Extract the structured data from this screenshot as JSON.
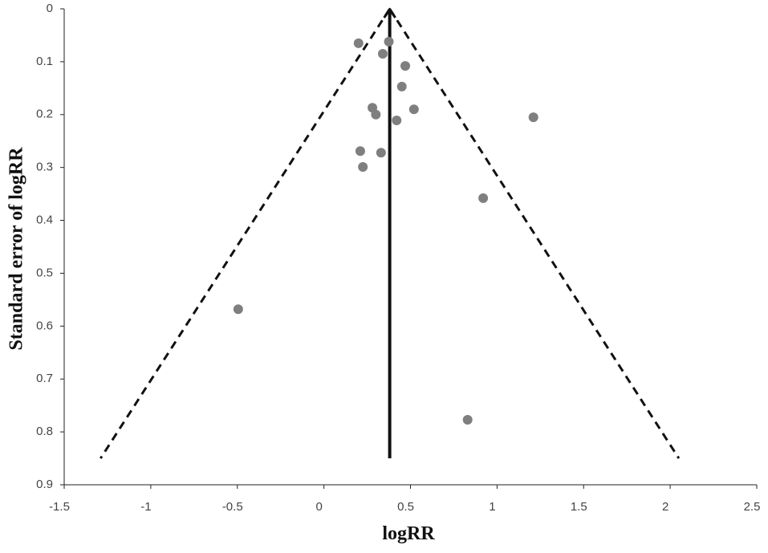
{
  "chart_data": {
    "type": "scatter",
    "x_label": "logRR",
    "y_label": "Standard error of logRR",
    "x": [
      0.2,
      0.375,
      0.34,
      0.47,
      0.45,
      0.28,
      0.52,
      0.3,
      0.42,
      1.21,
      0.21,
      0.33,
      0.225,
      0.92,
      -0.495,
      0.83
    ],
    "values": [
      0.065,
      0.062,
      0.085,
      0.108,
      0.147,
      0.187,
      0.19,
      0.2,
      0.211,
      0.205,
      0.269,
      0.272,
      0.299,
      0.358,
      0.568,
      0.777
    ],
    "color": "#7f7f7f",
    "pooled_estimate": 0.38,
    "funnel_base_y": 0.85,
    "funnel_left_x": -1.29,
    "funnel_right_x": 2.05,
    "xlim": [
      -1.5,
      2.5
    ],
    "xticks": [
      -1.5,
      -1,
      -0.5,
      0,
      0.5,
      1,
      1.5,
      2,
      2.5
    ],
    "ylim": [
      0,
      0.9
    ],
    "yticks": [
      0,
      0.1,
      0.2,
      0.3,
      0.4,
      0.5,
      0.6,
      0.7,
      0.8,
      0.9
    ],
    "y_inverted": true,
    "grid": false
  }
}
